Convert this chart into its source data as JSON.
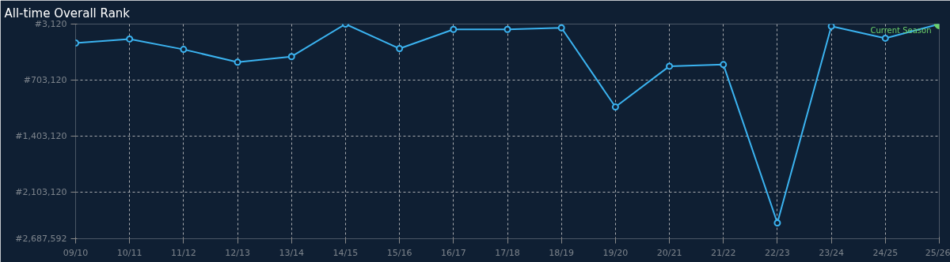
{
  "chart_data": {
    "type": "line",
    "title": "All-time Overall Rank",
    "categories": [
      "09/10",
      "10/11",
      "11/12",
      "12/13",
      "13/14",
      "14/15",
      "15/16",
      "16/17",
      "17/18",
      "18/19",
      "19/20",
      "20/21",
      "21/22",
      "22/23",
      "23/24",
      "24/25",
      "25/26"
    ],
    "series": [
      {
        "color": "#3bb3f0",
        "colors": [
          "#3bb3f0",
          "#3bb3f0",
          "#3bb3f0",
          "#3bb3f0",
          "#3bb3f0",
          "#3bb3f0",
          "#3bb3f0",
          "#3bb3f0",
          "#3bb3f0",
          "#3bb3f0",
          "#3bb3f0",
          "#3bb3f0",
          "#3bb3f0",
          "#3bb3f0",
          "#3bb3f0",
          "#3bb3f0",
          "#6cd26a"
        ],
        "values": [
          240000,
          190000,
          320000,
          480000,
          410000,
          3120,
          310000,
          70000,
          70000,
          50000,
          1040000,
          530000,
          510000,
          2490000,
          30000,
          180000,
          3120
        ]
      }
    ],
    "ylim": [
      2687592,
      3120
    ],
    "yticks": [
      {
        "value": 3120,
        "label": "#3,120"
      },
      {
        "value": 703120,
        "label": "#703,120"
      },
      {
        "value": 1403120,
        "label": "#1,403,120"
      },
      {
        "value": 2103120,
        "label": "#2,103,120"
      },
      {
        "value": 2687592,
        "label": "#2,687,592"
      }
    ],
    "annotations": [
      {
        "text": "Current Season",
        "x": "25/26",
        "y": 3120
      }
    ],
    "grid": true,
    "marker": "circle"
  }
}
